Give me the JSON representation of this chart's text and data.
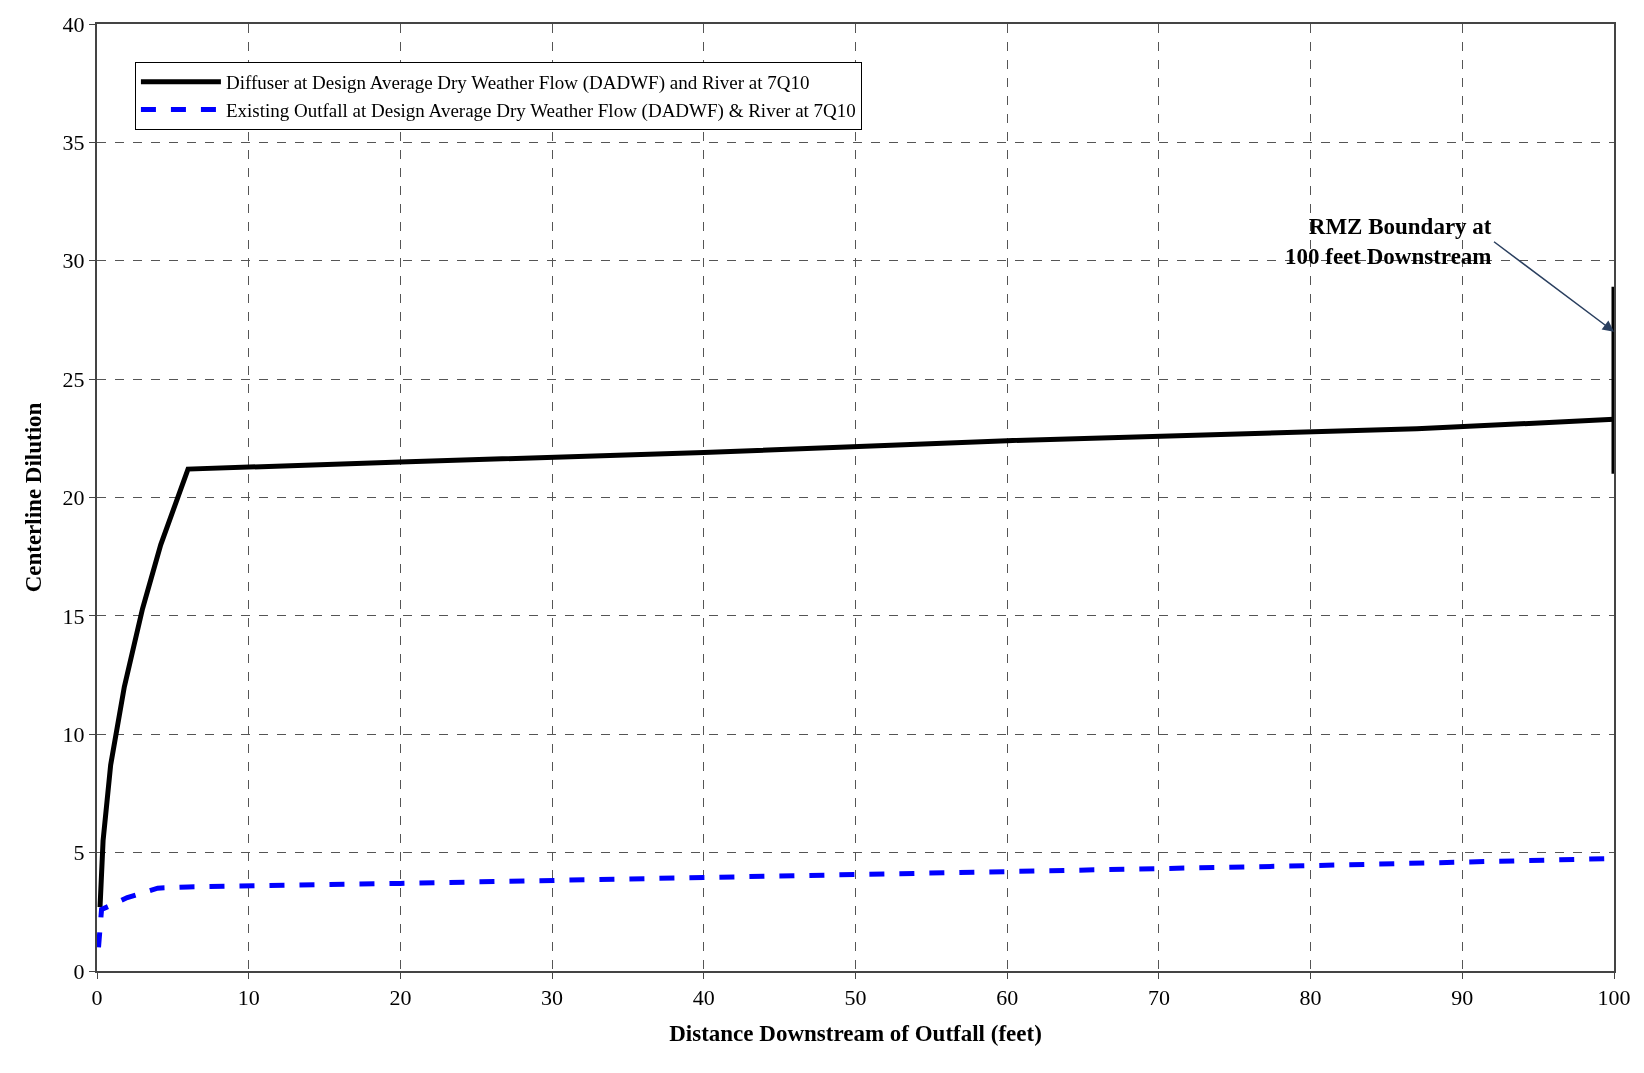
{
  "chart_data": {
    "type": "line",
    "xlabel": "Distance Downstream of Outfall (feet)",
    "ylabel": "Centerline Dilution",
    "xlim": [
      0,
      100
    ],
    "xticks": [
      0,
      10,
      20,
      30,
      40,
      50,
      60,
      70,
      80,
      90,
      100
    ],
    "ylim": [
      0,
      40
    ],
    "yticks": [
      0,
      5,
      10,
      15,
      20,
      25,
      30,
      35,
      40
    ],
    "grid": true,
    "legend": "top left",
    "series": [
      {
        "name": "Diffuser at Design Average Dry Weather Flow (DADWF) and River at 7Q10",
        "color": "#000000",
        "line_style": "solid",
        "x": [
          0.2,
          0.4,
          0.9,
          1.8,
          3,
          4.2,
          6,
          20,
          40,
          60,
          87,
          100
        ],
        "values": [
          2.7,
          5.5,
          8.7,
          12,
          15.3,
          18,
          21.2,
          21.5,
          21.9,
          22.4,
          22.9,
          23.3
        ]
      },
      {
        "name": "Existing Outfall at Design Average Dry Weather Flow (DADWF) & River at 7Q10",
        "color": "#0000ff",
        "line_style": "dashed",
        "x": [
          0.1,
          0.3,
          1,
          2,
          3,
          4,
          6,
          20,
          40,
          60,
          80,
          100
        ],
        "values": [
          1,
          2.6,
          2.8,
          3.1,
          3.3,
          3.5,
          3.55,
          3.7,
          3.95,
          4.2,
          4.45,
          4.75
        ]
      },
      {
        "color": "#000000",
        "line_style": "solid",
        "x": [
          100,
          100
        ],
        "values": [
          21,
          28.9
        ]
      }
    ],
    "annotations": [
      {
        "text": "RMZ Boundary at\n100 feet Downstream",
        "x": 100,
        "y": 27
      }
    ]
  }
}
